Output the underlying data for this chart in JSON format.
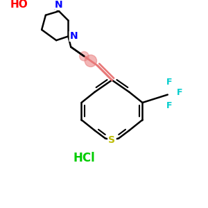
{
  "background_color": "#ffffff",
  "figure_size": [
    3.0,
    3.0
  ],
  "dpi": 100,
  "bond_color": "#000000",
  "bond_lw": 1.8,
  "ho_color": "#ff0000",
  "n_color": "#0000ff",
  "s_color": "#bbbb00",
  "f_color": "#00cccc",
  "hcl_color": "#00cc00",
  "double_bond_color": "#e87878",
  "HO_label": "HO",
  "N_label": "N",
  "S_label": "S",
  "F_label": "F",
  "HCl_label": "HCl",
  "xlim": [
    0,
    300
  ],
  "ylim": [
    0,
    300
  ]
}
